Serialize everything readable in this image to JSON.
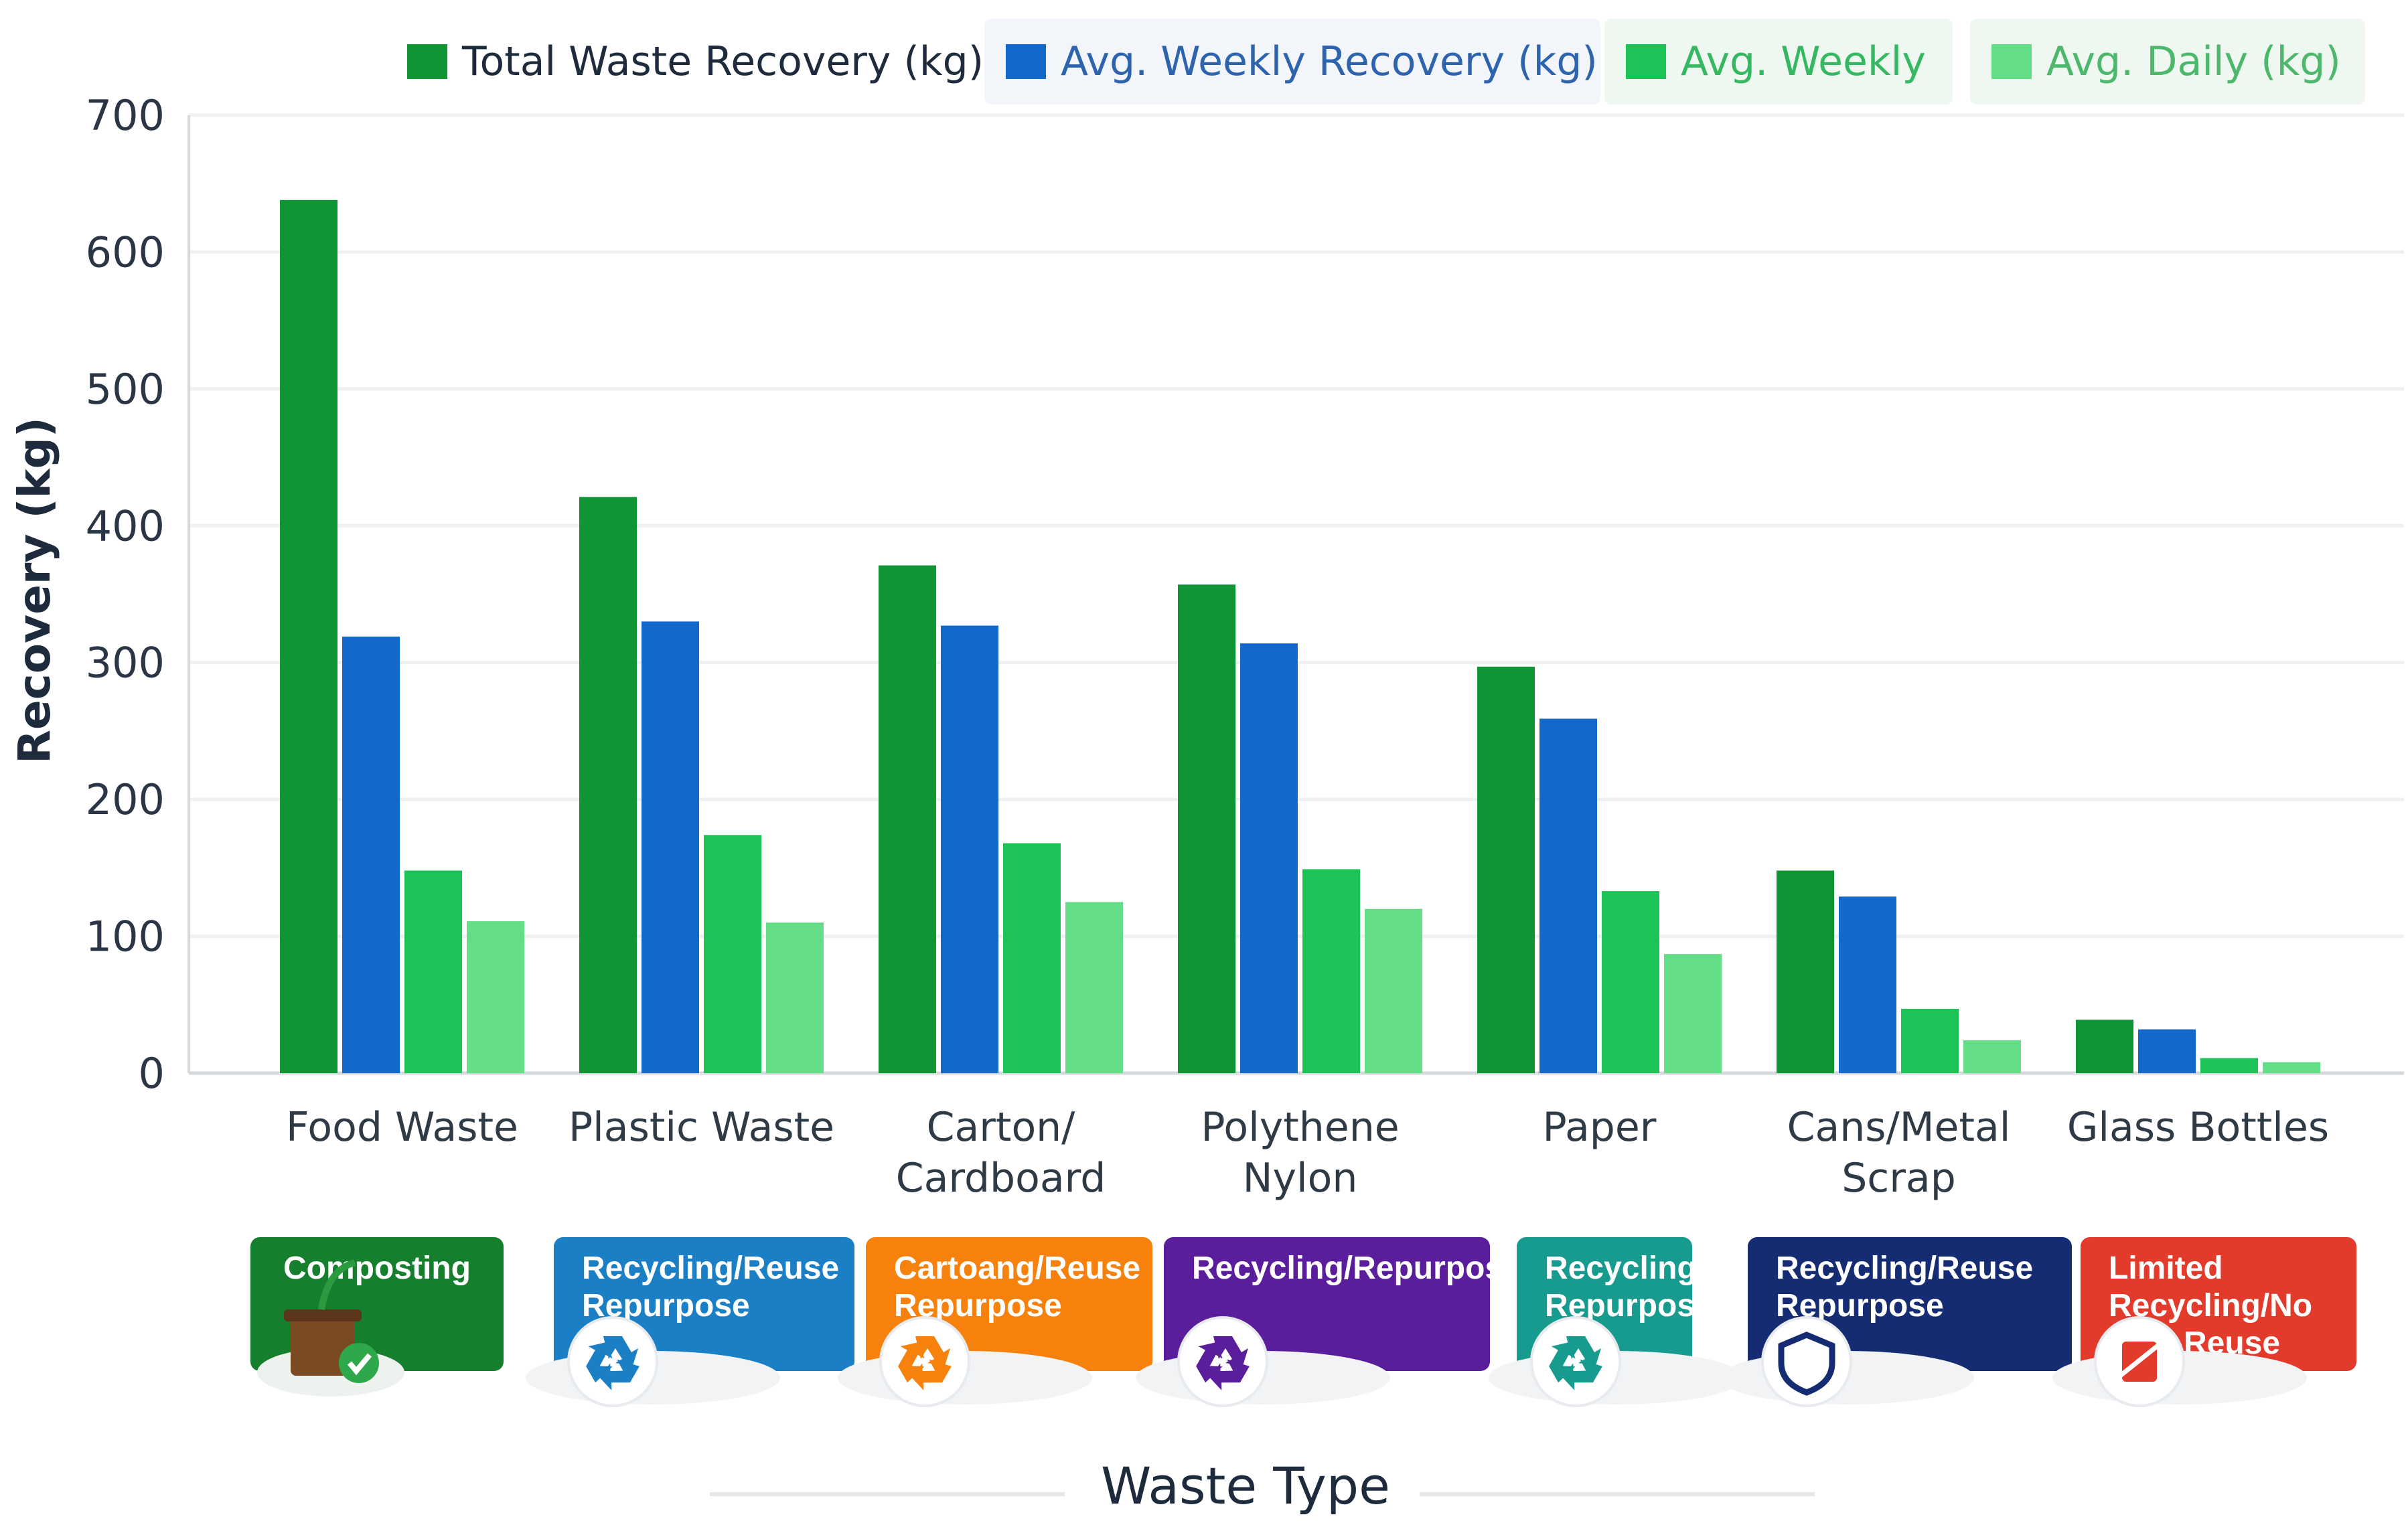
{
  "chart_data": {
    "type": "bar",
    "title": "",
    "xlabel": "Waste Type",
    "ylabel": "Recovery (kg)",
    "ylim": [
      0,
      700
    ],
    "yticks": [
      0,
      100,
      200,
      300,
      400,
      500,
      600,
      700
    ],
    "grid": true,
    "legend_position": "top",
    "categories": [
      [
        "Food Waste"
      ],
      [
        "Plastic Waste"
      ],
      [
        "Carton/",
        "Cardboard"
      ],
      [
        "Polythene",
        "Nylon"
      ],
      [
        "Paper"
      ],
      [
        "Cans/Metal",
        "Scrap"
      ],
      [
        "Glass Bottles"
      ]
    ],
    "series": [
      {
        "name": "Total Waste Recovery (kg)",
        "color": "#0f9534",
        "values": [
          638,
          421,
          371,
          357,
          297,
          148,
          39
        ]
      },
      {
        "name": "Avg. Weekly Recovery (kg)",
        "color": "#1368cc",
        "values": [
          319,
          330,
          327,
          314,
          259,
          129,
          32
        ]
      },
      {
        "name": "Avg. Weekly",
        "color": "#1cc356",
        "values": [
          148,
          174,
          168,
          149,
          133,
          47,
          11
        ]
      },
      {
        "name": "Avg. Daily (kg)",
        "color": "#63dd86",
        "values": [
          111,
          110,
          125,
          120,
          87,
          24,
          8
        ]
      }
    ],
    "recovery_methods": [
      {
        "lines": [
          "Composting"
        ],
        "color": "#157f2e",
        "icon": "compost-bin-icon"
      },
      {
        "lines": [
          "Recycling/Reuse",
          "Repurpose"
        ],
        "color": "#1a7fc4",
        "icon": "recycle-icon"
      },
      {
        "lines": [
          "Cartoang/Reuse",
          "Repurpose"
        ],
        "color": "#f6820d",
        "icon": "recycle-icon"
      },
      {
        "lines": [
          "Recycling/Repurpose"
        ],
        "color": "#5a1e9c",
        "icon": "recycle-icon"
      },
      {
        "lines": [
          "Recycling/",
          "Repurpose"
        ],
        "color": "#169b8e",
        "icon": "recycle-icon"
      },
      {
        "lines": [
          "Recycling/Reuse",
          "Repurpose"
        ],
        "color": "#162c72",
        "icon": "shield-icon"
      },
      {
        "lines": [
          "Limited",
          "Recycling/No",
          "Reuse"
        ],
        "color": "#e23a2b",
        "icon": "no-recycle-icon"
      }
    ]
  }
}
